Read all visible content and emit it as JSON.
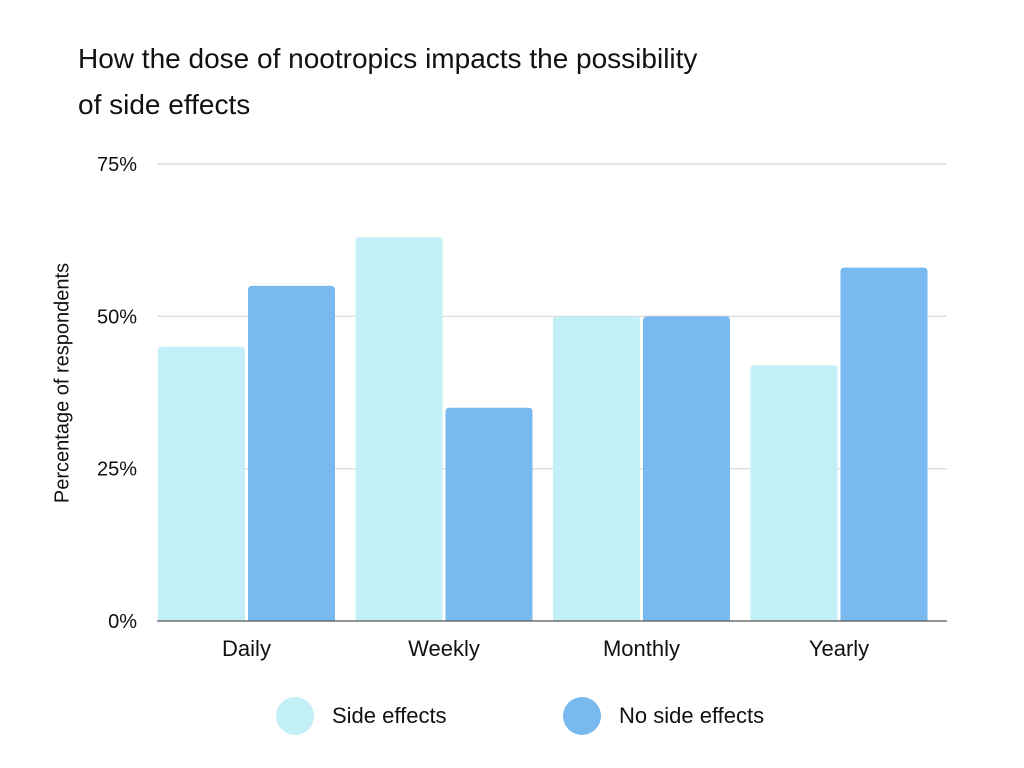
{
  "chart_data": {
    "type": "bar",
    "title": "How the dose of nootropics impacts the possibility of side effects",
    "xlabel": "",
    "ylabel": "Percentage of respondents",
    "categories": [
      "Daily",
      "Weekly",
      "Monthly",
      "Yearly"
    ],
    "series": [
      {
        "name": "Side effects",
        "color": "#c3f0f6",
        "values": [
          45,
          63,
          50,
          42
        ]
      },
      {
        "name": "No side effects",
        "color": "#78b9f0",
        "values": [
          55,
          35,
          50,
          58
        ]
      }
    ],
    "ylim": [
      0,
      75
    ],
    "yticks": [
      0,
      25,
      50,
      75
    ],
    "ytick_labels": [
      "0%",
      "25%",
      "50%",
      "75%"
    ],
    "grid": true,
    "legend_position": "bottom"
  }
}
